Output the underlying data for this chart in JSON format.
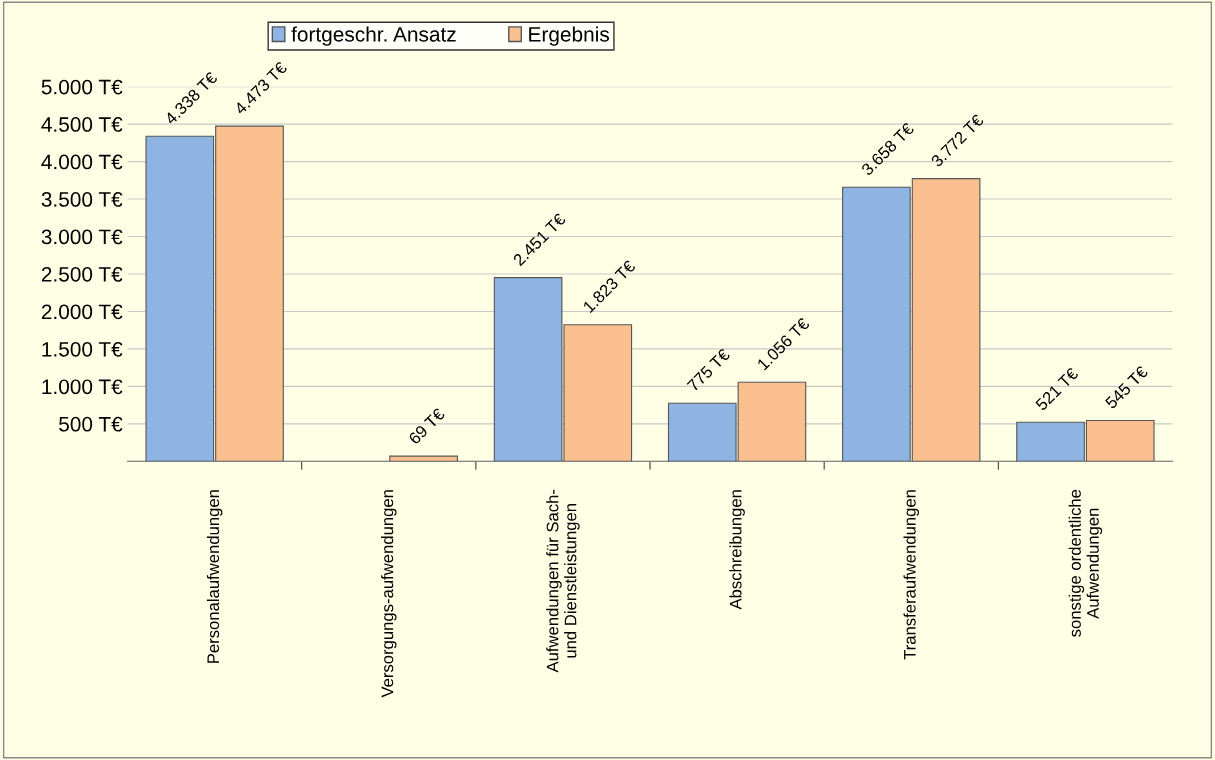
{
  "chart_data": {
    "type": "bar",
    "categories": [
      "Personalaufwendungen",
      "Versorgungs-aufwendungen",
      "Aufwendungen für Sach- und Dienstleistungen",
      "Abschreibungen",
      "Transferaufwendungen",
      "sonstige ordentliche Aufwendungen"
    ],
    "series": [
      {
        "name": "fortgeschr. Ansatz",
        "color": "#8db4e2",
        "values": [
          4338,
          null,
          2451,
          775,
          3658,
          521
        ],
        "value_labels": [
          "4.338 T€",
          null,
          "2.451 T€",
          "775 T€",
          "3.658 T€",
          "521 T€"
        ]
      },
      {
        "name": "Ergebnis",
        "color": "#fac08f",
        "values": [
          4473,
          69,
          1823,
          1056,
          3772,
          545
        ],
        "value_labels": [
          "4.473 T€",
          "69 T€",
          "1.823 T€",
          "1.056 T€",
          "3.772 T€",
          "545 T€"
        ]
      }
    ],
    "ylim": [
      0,
      5000
    ],
    "yticks": [
      {
        "value": 0,
        "label": null
      },
      {
        "value": 500,
        "label": "500 T€"
      },
      {
        "value": 1000,
        "label": "1.000 T€"
      },
      {
        "value": 1500,
        "label": "1.500 T€"
      },
      {
        "value": 2000,
        "label": "2.000 T€"
      },
      {
        "value": 2500,
        "label": "2.500 T€"
      },
      {
        "value": 3000,
        "label": "3.000 T€"
      },
      {
        "value": 3500,
        "label": "3.500 T€"
      },
      {
        "value": 4000,
        "label": "4.000 T€"
      },
      {
        "value": 4500,
        "label": "4.500 T€"
      },
      {
        "value": 5000,
        "label": "5.000 T€"
      }
    ],
    "grid": "y",
    "legend": "top"
  }
}
